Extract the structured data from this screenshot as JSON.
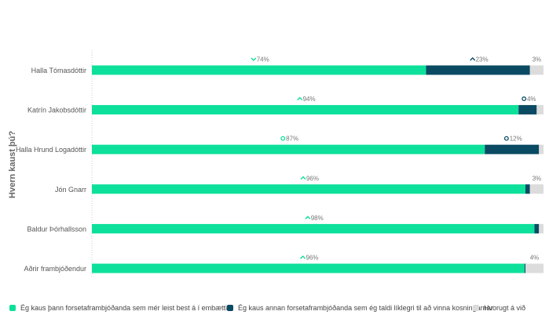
{
  "chart_data": {
    "type": "bar",
    "orientation": "horizontal",
    "stacked": true,
    "ylabel": "Hvern kaust þú?",
    "categories": [
      "Halla Tómasdóttir",
      "Katrín Jakobsdóttir",
      "Halla Hrund Logadóttir",
      "Jón Gnarr",
      "Baldur Þórhallsson",
      "Aðrir frambjóðendur"
    ],
    "series": [
      {
        "name": "Ég kaus þann forsetaframbjóðanda sem mér leist best á í embættið",
        "color": "#0de09a",
        "values": [
          74,
          94,
          87,
          96,
          98,
          96
        ],
        "labels": [
          "74%",
          "94%",
          "87%",
          "96%",
          "98%",
          "96%"
        ],
        "markers": [
          "chevron-down",
          "chevron-up",
          "circle",
          "chevron-up",
          "chevron-up",
          "chevron-up"
        ]
      },
      {
        "name": "Ég kaus annan forsetaframbjóðanda sem ég taldi líklegri til að vinna kosningarnar",
        "color": "#0b4a63",
        "values": [
          23,
          4,
          12,
          1,
          1,
          0.2
        ],
        "labels": [
          "23%",
          "4%",
          "12%",
          "",
          "",
          ""
        ],
        "markers": [
          "chevron-up",
          "circle",
          "circle",
          "",
          "",
          ""
        ]
      },
      {
        "name": "Hvorugt á við",
        "color": "#dcdcdc",
        "values": [
          3,
          1.5,
          1,
          3,
          1,
          4
        ],
        "labels": [
          "3%",
          "",
          "",
          "3%",
          "",
          "4%"
        ]
      }
    ],
    "xlim": [
      0,
      100
    ],
    "grid": false,
    "legend_position": "bottom"
  }
}
